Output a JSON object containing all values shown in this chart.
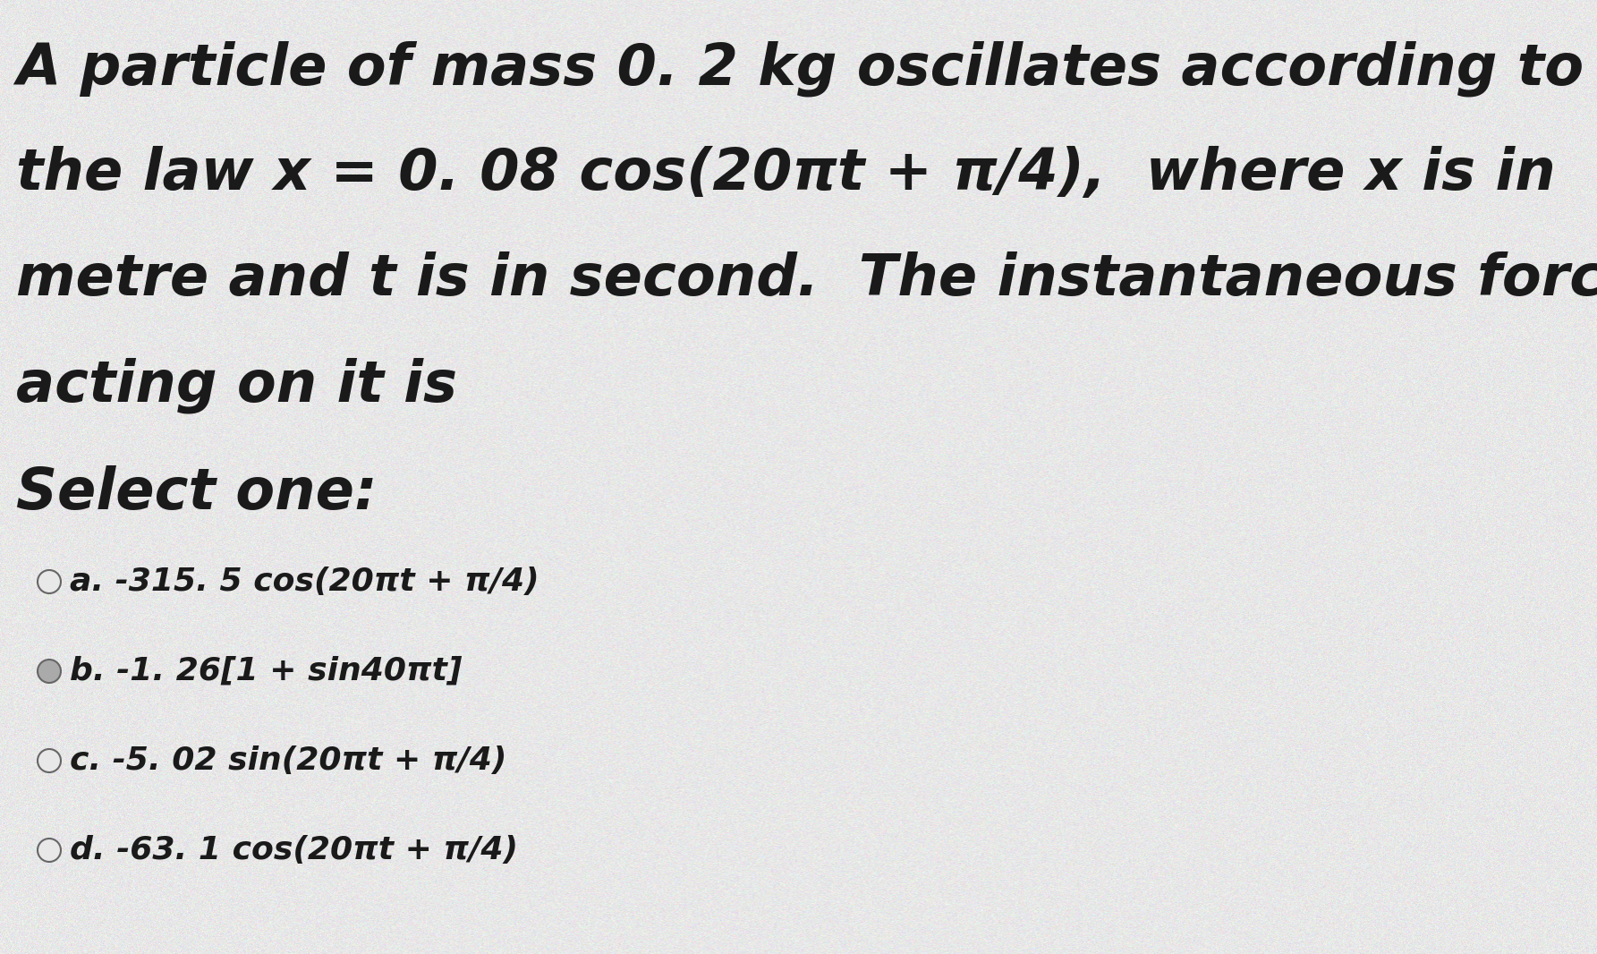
{
  "background_color": "#e8e8e8",
  "text_color": "#1a1a1a",
  "question_lines": [
    "A particle of mass 0. 2 kg oscillates according to",
    "the law x = 0. 08 cos(20πt + π/4),  where x is in",
    "metre and t is in second.  The instantaneous force",
    "acting on it is"
  ],
  "select_one": "Select one:",
  "options": [
    {
      "label": "a.",
      "text": " -315. 5 cos(20πt + π/4)",
      "selected": false
    },
    {
      "label": "b.",
      "text": " -1. 26[1 + sin40πt]",
      "selected": true
    },
    {
      "label": "c.",
      "text": " -5. 02 sin(20πt + π/4)",
      "selected": false
    },
    {
      "label": "d.",
      "text": " -63. 1 cos(20πt + π/4)",
      "selected": false
    }
  ],
  "question_fontsize": 46,
  "select_fontsize": 46,
  "option_fontsize": 26,
  "fig_width": 17.85,
  "fig_height": 10.66,
  "dpi": 100
}
